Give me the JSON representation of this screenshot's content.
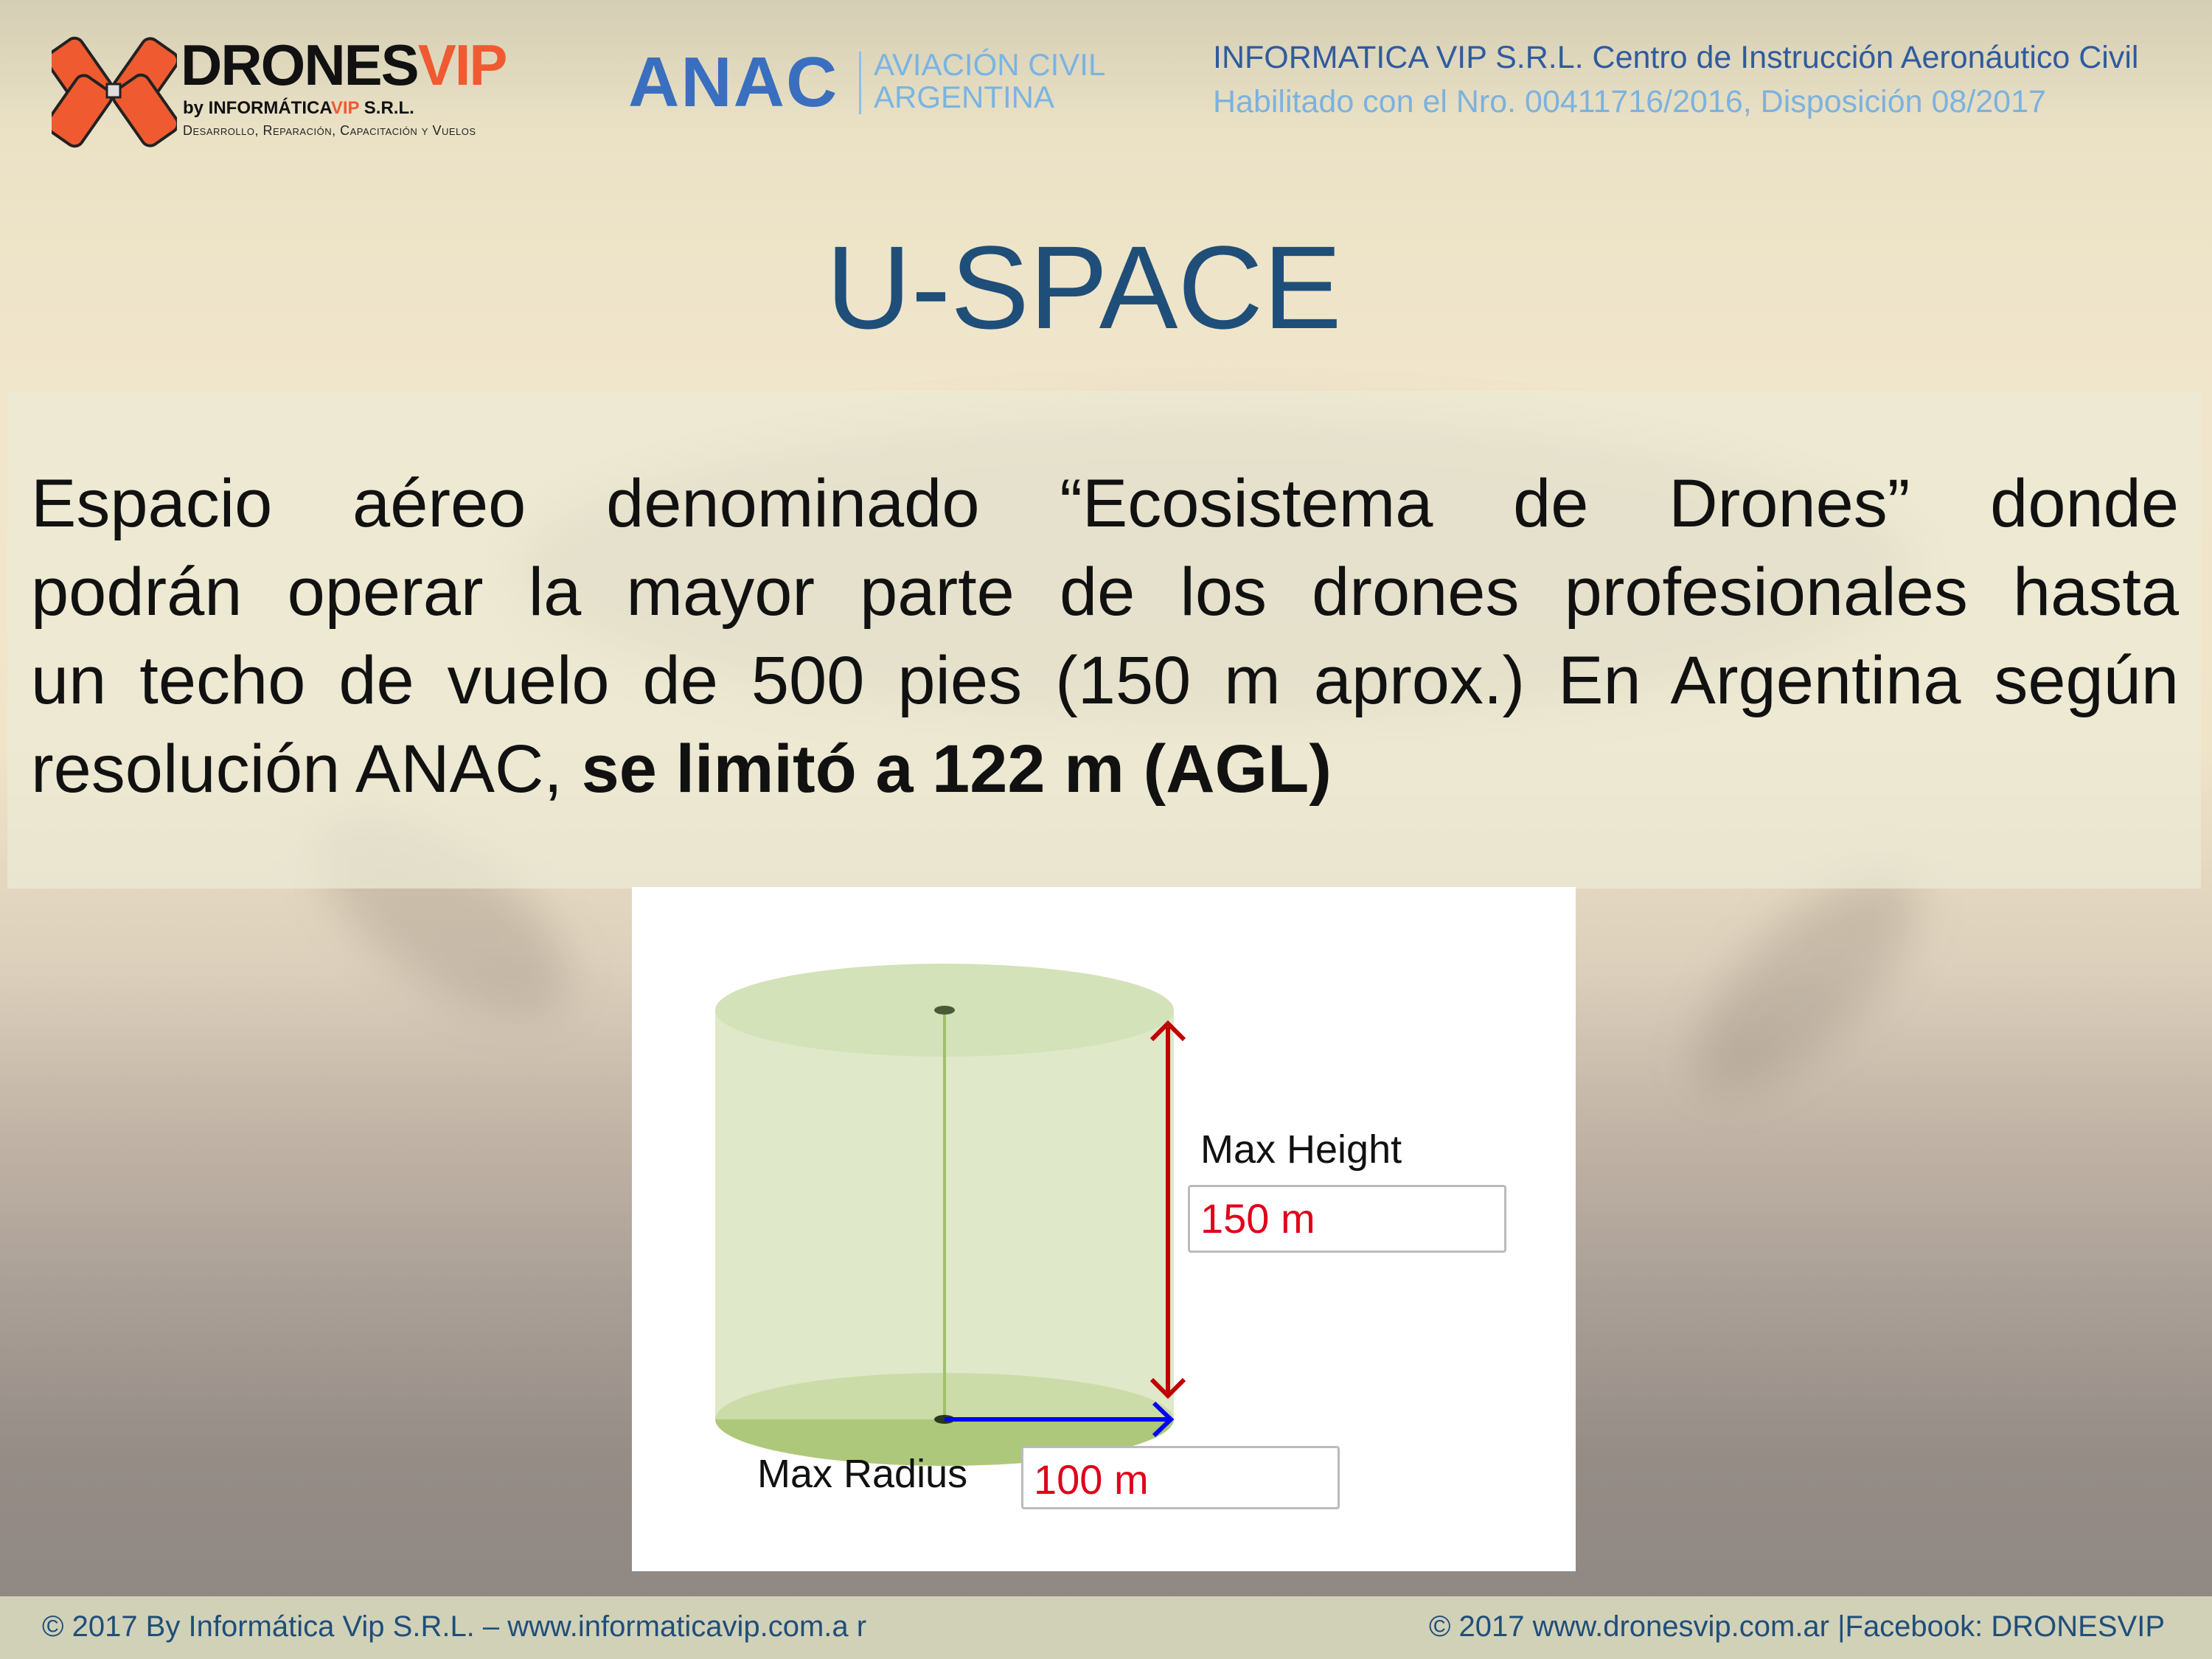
{
  "header": {
    "logo_brand": "DRONES",
    "logo_brand_accent": "VIP",
    "logo_by": "by INFORMÁTICA",
    "logo_by_accent": "VIP",
    "logo_by_suffix": " S.R.L.",
    "logo_tagline": "Desarrollo, Reparación, Capacitación y Vuelos",
    "anac": "ANAC",
    "anac_line1": "AVIACIÓN CIVIL",
    "anac_line2": "ARGENTINA",
    "institution": "INFORMATICA VIP S.R.L. Centro de Instrucción Aeronáutico Civil",
    "license": "Habilitado con el Nro. 00411716/2016, Disposición 08/2017"
  },
  "title": "U-SPACE",
  "body": {
    "lines": [
      "Espacio aéreo denominado “Ecosistema de Drones” donde",
      "podrán operar la mayor parte de los drones profesionales hasta",
      "un techo de vuelo de 500 pies (150 m aprox.) En Argentina según"
    ],
    "last_plain": "resolución ANAC, ",
    "last_bold": "se limitó a 122 m (AGL)"
  },
  "diagram": {
    "height_label": "Max Height",
    "height_value": "150 m",
    "radius_label": "Max Radius",
    "radius_value": "100 m",
    "colors": {
      "cylinder": "#dfe8c8",
      "height_arrow": "#c00000",
      "radius_arrow": "#0000ff",
      "value_text": "#e0001a"
    }
  },
  "footer": {
    "left": "© 2017 By Informática Vip S.R.L. – www.informaticavip.com.a r",
    "right": "© 2017  www.dronesvip.com.ar |Facebook: DRONESVIP"
  },
  "colors": {
    "title": "#1f4e79",
    "brand_orange": "#f05a30",
    "anac_blue": "#3a6fbf"
  }
}
